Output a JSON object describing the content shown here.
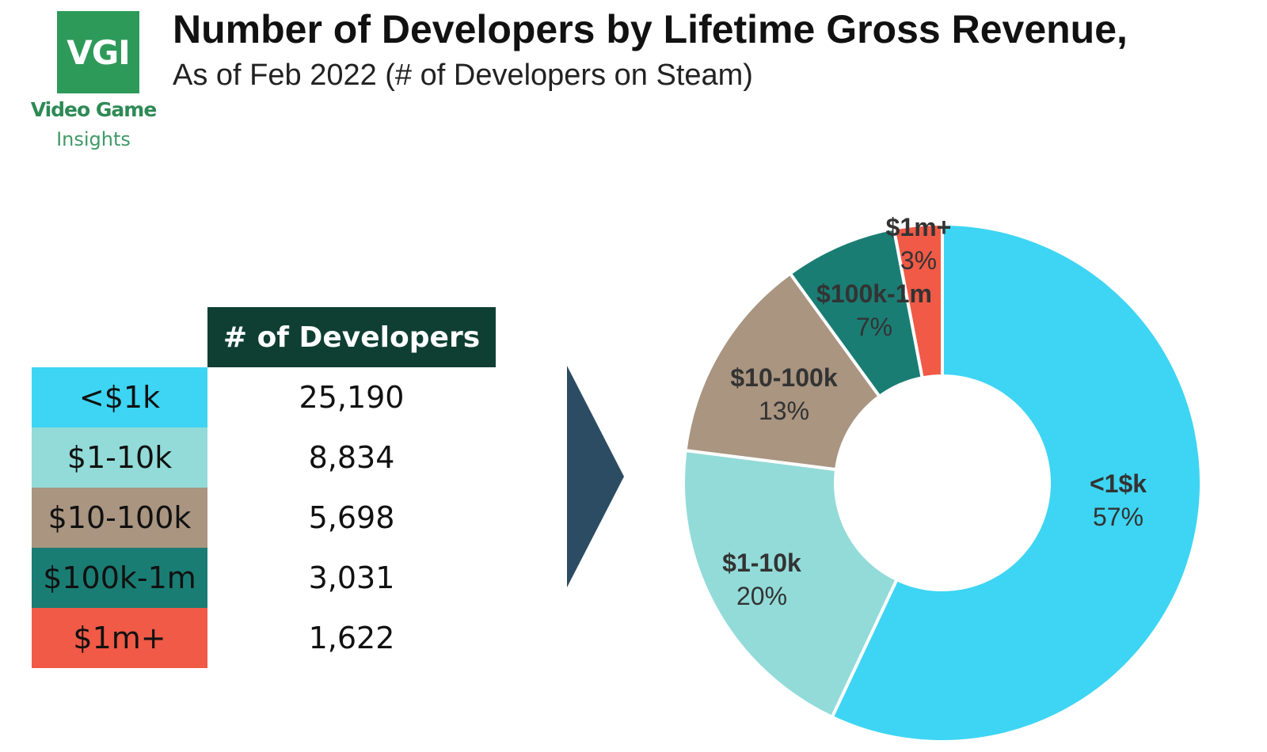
{
  "logo": {
    "mark": "VGI",
    "line1": "Video Game",
    "line2": "Insights",
    "color": "#2e9a5a"
  },
  "title": "Number of Developers by Lifetime Gross Revenue,",
  "subtitle": "As of Feb 2022 (# of Developers on Steam)",
  "table": {
    "header": "# of Developers",
    "header_color": "#0f3f33",
    "rows": [
      {
        "category": "<$1k",
        "value": "25,190",
        "color": "#3dd5f3"
      },
      {
        "category": "$1-10k",
        "value": "8,834",
        "color": "#92dbd8"
      },
      {
        "category": "$10-100k",
        "value": "5,698",
        "color": "#a99580"
      },
      {
        "category": "$100k-1m",
        "value": "3,031",
        "color": "#1a7d74"
      },
      {
        "category": "$1m+",
        "value": "1,622",
        "color": "#f05a46"
      }
    ]
  },
  "arrow": {
    "icon": "chevron-right-icon",
    "color": "#2c4c63"
  },
  "chart_data": {
    "type": "pie",
    "donut": true,
    "start": "12 o'clock",
    "direction": "clockwise",
    "categories": [
      "<1$k",
      "$1-10k",
      "$10-100k",
      "$100k-1m",
      "$1m+"
    ],
    "values": [
      57,
      20,
      13,
      7,
      3
    ],
    "value_labels": [
      "57%",
      "20%",
      "13%",
      "7%",
      "3%"
    ],
    "colors": [
      "#3dd5f3",
      "#92dbd8",
      "#a99580",
      "#1a7d74",
      "#f05a46"
    ]
  }
}
